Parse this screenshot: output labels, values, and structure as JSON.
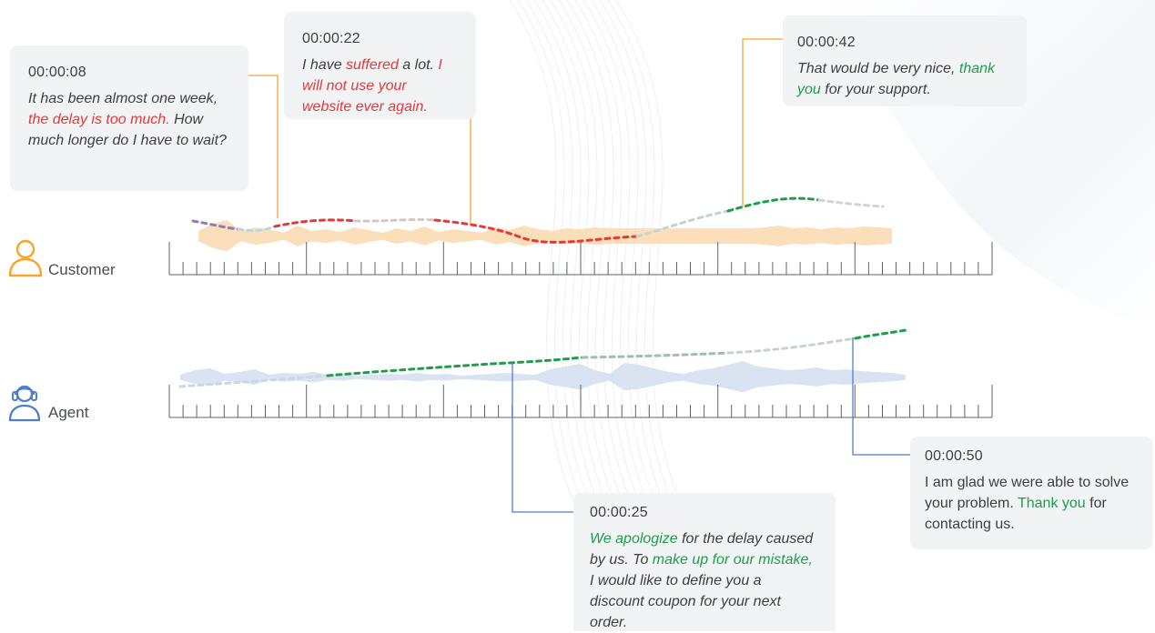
{
  "speakers": {
    "customer": {
      "label": "Customer",
      "color": "#f6a52b"
    },
    "agent": {
      "label": "Agent",
      "color": "#4f7fc9"
    }
  },
  "colors": {
    "negative": "#e5383b",
    "positive": "#1e9e4a",
    "neutral_dots": "#c9cfd6",
    "customer_wave": "#fbdcb3",
    "agent_wave": "#d5e0f0",
    "bubble_bg": "#f1f3f4",
    "text": "#3c4043"
  },
  "icons": {
    "customer": "user-outline-icon",
    "agent": "headset-agent-icon"
  },
  "messages": [
    {
      "id": "msg1",
      "speaker": "customer",
      "time": "00:00:08",
      "style": "italic",
      "segments": [
        {
          "text": "It has been almost one week, ",
          "tone": "neutral"
        },
        {
          "text": "the delay is too much.",
          "tone": "negative"
        },
        {
          "text": " How much longer do I have to wait?",
          "tone": "neutral"
        }
      ]
    },
    {
      "id": "msg2",
      "speaker": "customer",
      "time": "00:00:22",
      "style": "italic",
      "segments": [
        {
          "text": "I have ",
          "tone": "neutral"
        },
        {
          "text": "suffered",
          "tone": "negative"
        },
        {
          "text": " a lot. ",
          "tone": "neutral"
        },
        {
          "text": "I will not use your website ever again.",
          "tone": "negative"
        }
      ]
    },
    {
      "id": "msg3",
      "speaker": "customer",
      "time": "00:00:42",
      "style": "italic",
      "segments": [
        {
          "text": "That would be very nice, ",
          "tone": "neutral"
        },
        {
          "text": "thank you",
          "tone": "positive"
        },
        {
          "text": " for your support.",
          "tone": "neutral"
        }
      ]
    },
    {
      "id": "msg4",
      "speaker": "agent",
      "time": "00:00:25",
      "style": "italic",
      "segments": [
        {
          "text": "We apologize",
          "tone": "positive"
        },
        {
          "text": " for the delay caused by us. To ",
          "tone": "neutral"
        },
        {
          "text": "make up for our mistake,",
          "tone": "positive"
        },
        {
          "text": " I would like to define you a discount coupon for your next order.",
          "tone": "neutral"
        }
      ]
    },
    {
      "id": "msg5",
      "speaker": "agent",
      "time": "00:00:50",
      "style": "plain",
      "segments": [
        {
          "text": "I am glad we were able to solve your problem. ",
          "tone": "neutral"
        },
        {
          "text": "Thank you",
          "tone": "positive"
        },
        {
          "text": " for contacting us.",
          "tone": "neutral"
        }
      ]
    }
  ]
}
